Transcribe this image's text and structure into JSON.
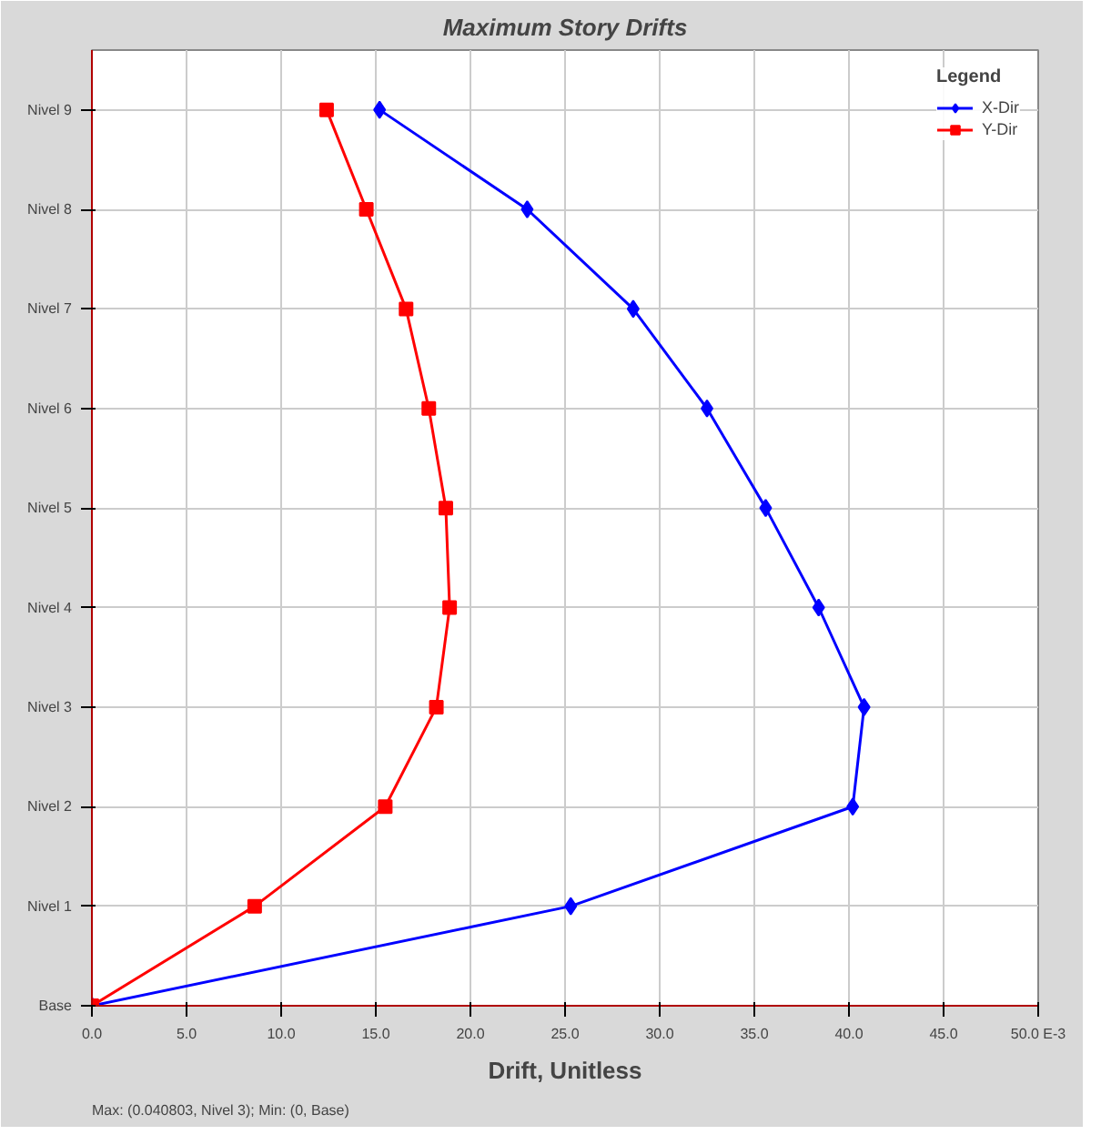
{
  "chart_data": {
    "type": "line",
    "orientation": "horizontal",
    "title": "Maximum Story Drifts",
    "xlabel": "Drift, Unitless",
    "legend_title": "Legend",
    "legend": "top right",
    "grid": true,
    "xlim": [
      0,
      50
    ],
    "xticks": [
      {
        "value": 0,
        "label": "0.0"
      },
      {
        "value": 5,
        "label": "5.0"
      },
      {
        "value": 10,
        "label": "10.0"
      },
      {
        "value": 15,
        "label": "15.0"
      },
      {
        "value": 20,
        "label": "20.0"
      },
      {
        "value": 25,
        "label": "25.0"
      },
      {
        "value": 30,
        "label": "30.0"
      },
      {
        "value": 35,
        "label": "35.0"
      },
      {
        "value": 40,
        "label": "40.0"
      },
      {
        "value": 45,
        "label": "45.0"
      },
      {
        "value": 50,
        "label": "50.0 E-3"
      }
    ],
    "categories": [
      "Nivel 9",
      "Nivel 8",
      "Nivel 7",
      "Nivel 6",
      "Nivel 5",
      "Nivel 4",
      "Nivel 3",
      "Nivel 2",
      "Nivel 1",
      "Base"
    ],
    "series": [
      {
        "name": "X-Dir",
        "color": "#0000ff",
        "marker": "diamond",
        "values": [
          15.2,
          23.0,
          28.6,
          32.5,
          35.6,
          38.4,
          40.8,
          40.2,
          25.3,
          0
        ]
      },
      {
        "name": "Y-Dir",
        "color": "#ff0000",
        "marker": "square",
        "values": [
          12.4,
          14.5,
          16.6,
          17.8,
          18.7,
          18.9,
          18.2,
          15.5,
          8.6,
          0
        ]
      }
    ],
    "annotations": [
      "Max: (0.040803, Nivel 3);  Min: (0, Base)"
    ]
  }
}
